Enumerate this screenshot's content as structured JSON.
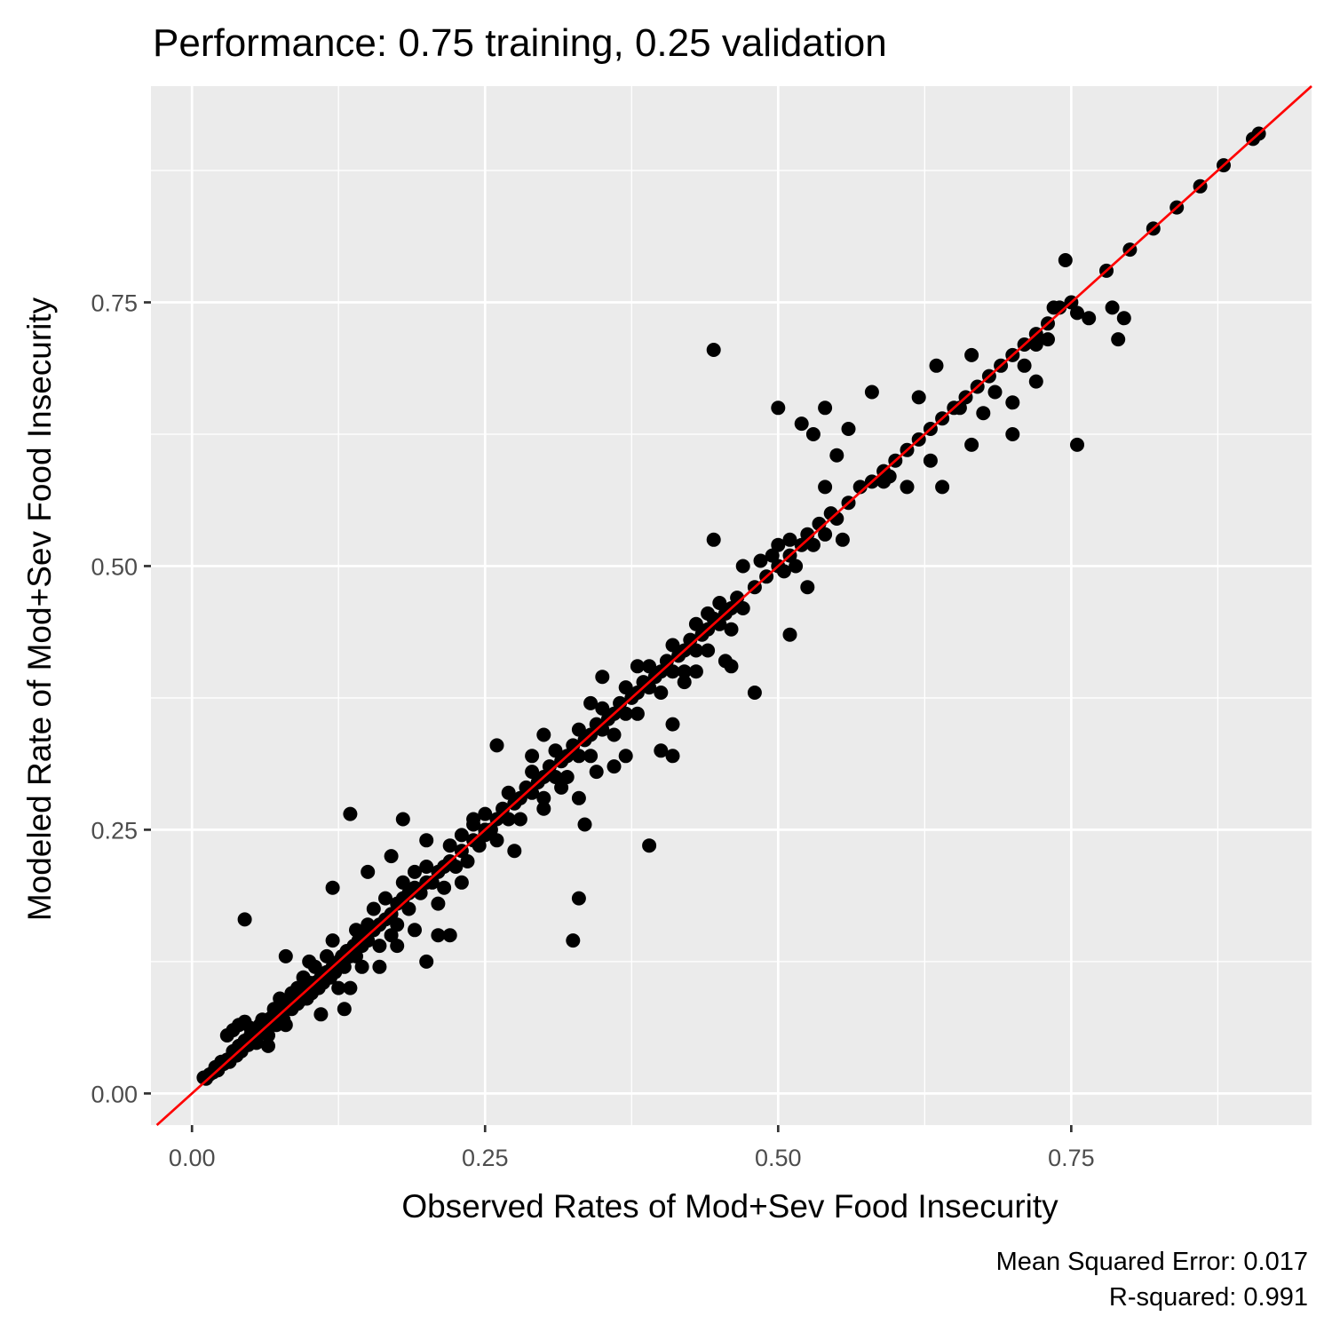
{
  "chart_data": {
    "type": "scatter",
    "title": "Performance: 0.75 training, 0.25 validation",
    "xlabel": "Observed Rates of Mod+Sev Food Insecurity",
    "ylabel": "Modeled Rate of Mod+Sev Food Insecurity",
    "xlim": [
      -0.035,
      0.955
    ],
    "ylim": [
      -0.03,
      0.955
    ],
    "x_ticks": [
      0.0,
      0.25,
      0.5,
      0.75
    ],
    "x_tick_labels": [
      "0.00",
      "0.25",
      "0.50",
      "0.75"
    ],
    "y_ticks": [
      0.0,
      0.25,
      0.5,
      0.75
    ],
    "y_tick_labels": [
      "0.00",
      "0.25",
      "0.50",
      "0.75"
    ],
    "grid": true,
    "legend": "none",
    "caption": [
      "Mean Squared Error: 0.017",
      "R-squared: 0.991"
    ],
    "reference_line": {
      "slope": 1,
      "intercept": 0,
      "color": "#ff0000"
    },
    "point_color": "#000000",
    "panel_background": "#ebebeb",
    "points": [
      [
        0.01,
        0.015
      ],
      [
        0.012,
        0.014
      ],
      [
        0.015,
        0.018
      ],
      [
        0.018,
        0.02
      ],
      [
        0.02,
        0.025
      ],
      [
        0.022,
        0.022
      ],
      [
        0.025,
        0.03
      ],
      [
        0.027,
        0.028
      ],
      [
        0.03,
        0.032
      ],
      [
        0.03,
        0.055
      ],
      [
        0.032,
        0.03
      ],
      [
        0.035,
        0.04
      ],
      [
        0.035,
        0.06
      ],
      [
        0.038,
        0.036
      ],
      [
        0.04,
        0.045
      ],
      [
        0.04,
        0.065
      ],
      [
        0.042,
        0.04
      ],
      [
        0.045,
        0.05
      ],
      [
        0.045,
        0.068
      ],
      [
        0.048,
        0.046
      ],
      [
        0.05,
        0.055
      ],
      [
        0.05,
        0.062
      ],
      [
        0.052,
        0.05
      ],
      [
        0.055,
        0.06
      ],
      [
        0.055,
        0.048
      ],
      [
        0.058,
        0.065
      ],
      [
        0.06,
        0.058
      ],
      [
        0.06,
        0.07
      ],
      [
        0.062,
        0.062
      ],
      [
        0.065,
        0.07
      ],
      [
        0.065,
        0.055
      ],
      [
        0.068,
        0.072
      ],
      [
        0.07,
        0.068
      ],
      [
        0.07,
        0.08
      ],
      [
        0.072,
        0.065
      ],
      [
        0.075,
        0.075
      ],
      [
        0.075,
        0.09
      ],
      [
        0.078,
        0.07
      ],
      [
        0.08,
        0.082
      ],
      [
        0.08,
        0.065
      ],
      [
        0.082,
        0.085
      ],
      [
        0.085,
        0.08
      ],
      [
        0.085,
        0.095
      ],
      [
        0.088,
        0.09
      ],
      [
        0.09,
        0.085
      ],
      [
        0.09,
        0.1
      ],
      [
        0.092,
        0.088
      ],
      [
        0.095,
        0.095
      ],
      [
        0.095,
        0.11
      ],
      [
        0.098,
        0.09
      ],
      [
        0.1,
        0.1
      ],
      [
        0.1,
        0.105
      ],
      [
        0.102,
        0.095
      ],
      [
        0.105,
        0.105
      ],
      [
        0.105,
        0.12
      ],
      [
        0.108,
        0.1
      ],
      [
        0.11,
        0.11
      ],
      [
        0.112,
        0.105
      ],
      [
        0.115,
        0.115
      ],
      [
        0.115,
        0.13
      ],
      [
        0.118,
        0.11
      ],
      [
        0.12,
        0.12
      ],
      [
        0.12,
        0.145
      ],
      [
        0.122,
        0.115
      ],
      [
        0.125,
        0.125
      ],
      [
        0.125,
        0.1
      ],
      [
        0.128,
        0.13
      ],
      [
        0.13,
        0.12
      ],
      [
        0.132,
        0.135
      ],
      [
        0.135,
        0.13
      ],
      [
        0.135,
        0.1
      ],
      [
        0.138,
        0.14
      ],
      [
        0.14,
        0.13
      ],
      [
        0.14,
        0.155
      ],
      [
        0.142,
        0.145
      ],
      [
        0.145,
        0.14
      ],
      [
        0.145,
        0.12
      ],
      [
        0.148,
        0.15
      ],
      [
        0.15,
        0.145
      ],
      [
        0.15,
        0.16
      ],
      [
        0.155,
        0.155
      ],
      [
        0.155,
        0.175
      ],
      [
        0.16,
        0.16
      ],
      [
        0.16,
        0.14
      ],
      [
        0.165,
        0.165
      ],
      [
        0.165,
        0.185
      ],
      [
        0.17,
        0.17
      ],
      [
        0.17,
        0.15
      ],
      [
        0.175,
        0.18
      ],
      [
        0.175,
        0.16
      ],
      [
        0.18,
        0.185
      ],
      [
        0.18,
        0.2
      ],
      [
        0.185,
        0.175
      ],
      [
        0.185,
        0.19
      ],
      [
        0.19,
        0.195
      ],
      [
        0.19,
        0.21
      ],
      [
        0.195,
        0.19
      ],
      [
        0.2,
        0.2
      ],
      [
        0.2,
        0.215
      ],
      [
        0.205,
        0.2
      ],
      [
        0.21,
        0.21
      ],
      [
        0.21,
        0.18
      ],
      [
        0.215,
        0.215
      ],
      [
        0.215,
        0.195
      ],
      [
        0.22,
        0.22
      ],
      [
        0.22,
        0.235
      ],
      [
        0.225,
        0.215
      ],
      [
        0.23,
        0.23
      ],
      [
        0.23,
        0.245
      ],
      [
        0.235,
        0.22
      ],
      [
        0.24,
        0.24
      ],
      [
        0.24,
        0.26
      ],
      [
        0.245,
        0.235
      ],
      [
        0.25,
        0.25
      ],
      [
        0.25,
        0.265
      ],
      [
        0.255,
        0.25
      ],
      [
        0.26,
        0.26
      ],
      [
        0.26,
        0.24
      ],
      [
        0.265,
        0.27
      ],
      [
        0.27,
        0.26
      ],
      [
        0.27,
        0.285
      ],
      [
        0.275,
        0.275
      ],
      [
        0.28,
        0.28
      ],
      [
        0.28,
        0.26
      ],
      [
        0.285,
        0.29
      ],
      [
        0.29,
        0.285
      ],
      [
        0.29,
        0.305
      ],
      [
        0.295,
        0.295
      ],
      [
        0.3,
        0.3
      ],
      [
        0.3,
        0.28
      ],
      [
        0.305,
        0.31
      ],
      [
        0.31,
        0.3
      ],
      [
        0.31,
        0.325
      ],
      [
        0.315,
        0.315
      ],
      [
        0.32,
        0.32
      ],
      [
        0.32,
        0.3
      ],
      [
        0.325,
        0.33
      ],
      [
        0.33,
        0.32
      ],
      [
        0.33,
        0.345
      ],
      [
        0.335,
        0.335
      ],
      [
        0.34,
        0.34
      ],
      [
        0.34,
        0.32
      ],
      [
        0.345,
        0.35
      ],
      [
        0.35,
        0.345
      ],
      [
        0.35,
        0.365
      ],
      [
        0.355,
        0.355
      ],
      [
        0.36,
        0.36
      ],
      [
        0.36,
        0.34
      ],
      [
        0.365,
        0.37
      ],
      [
        0.37,
        0.36
      ],
      [
        0.37,
        0.385
      ],
      [
        0.375,
        0.375
      ],
      [
        0.38,
        0.38
      ],
      [
        0.38,
        0.36
      ],
      [
        0.385,
        0.39
      ],
      [
        0.39,
        0.385
      ],
      [
        0.39,
        0.405
      ],
      [
        0.395,
        0.395
      ],
      [
        0.4,
        0.4
      ],
      [
        0.4,
        0.38
      ],
      [
        0.405,
        0.41
      ],
      [
        0.41,
        0.4
      ],
      [
        0.41,
        0.425
      ],
      [
        0.415,
        0.415
      ],
      [
        0.42,
        0.42
      ],
      [
        0.42,
        0.4
      ],
      [
        0.425,
        0.43
      ],
      [
        0.43,
        0.42
      ],
      [
        0.43,
        0.445
      ],
      [
        0.435,
        0.435
      ],
      [
        0.44,
        0.44
      ],
      [
        0.44,
        0.42
      ],
      [
        0.445,
        0.45
      ],
      [
        0.45,
        0.445
      ],
      [
        0.45,
        0.465
      ],
      [
        0.455,
        0.455
      ],
      [
        0.46,
        0.46
      ],
      [
        0.46,
        0.44
      ],
      [
        0.465,
        0.47
      ],
      [
        0.47,
        0.46
      ],
      [
        0.48,
        0.48
      ],
      [
        0.49,
        0.49
      ],
      [
        0.5,
        0.5
      ],
      [
        0.5,
        0.52
      ],
      [
        0.505,
        0.495
      ],
      [
        0.51,
        0.51
      ],
      [
        0.515,
        0.5
      ],
      [
        0.52,
        0.52
      ],
      [
        0.525,
        0.53
      ],
      [
        0.53,
        0.52
      ],
      [
        0.535,
        0.54
      ],
      [
        0.54,
        0.53
      ],
      [
        0.545,
        0.55
      ],
      [
        0.55,
        0.545
      ],
      [
        0.56,
        0.56
      ],
      [
        0.57,
        0.575
      ],
      [
        0.58,
        0.58
      ],
      [
        0.59,
        0.59
      ],
      [
        0.6,
        0.6
      ],
      [
        0.61,
        0.61
      ],
      [
        0.62,
        0.62
      ],
      [
        0.63,
        0.63
      ],
      [
        0.64,
        0.64
      ],
      [
        0.65,
        0.65
      ],
      [
        0.66,
        0.66
      ],
      [
        0.67,
        0.67
      ],
      [
        0.68,
        0.68
      ],
      [
        0.69,
        0.69
      ],
      [
        0.7,
        0.7
      ],
      [
        0.71,
        0.71
      ],
      [
        0.72,
        0.72
      ],
      [
        0.73,
        0.73
      ],
      [
        0.74,
        0.745
      ],
      [
        0.75,
        0.75
      ],
      [
        0.78,
        0.78
      ],
      [
        0.8,
        0.8
      ],
      [
        0.82,
        0.82
      ],
      [
        0.84,
        0.84
      ],
      [
        0.86,
        0.86
      ],
      [
        0.88,
        0.88
      ],
      [
        0.905,
        0.905
      ],
      [
        0.91,
        0.91
      ],
      [
        0.045,
        0.165
      ],
      [
        0.135,
        0.265
      ],
      [
        0.2,
        0.125
      ],
      [
        0.21,
        0.15
      ],
      [
        0.22,
        0.15
      ],
      [
        0.325,
        0.145
      ],
      [
        0.33,
        0.185
      ],
      [
        0.335,
        0.255
      ],
      [
        0.39,
        0.235
      ],
      [
        0.37,
        0.32
      ],
      [
        0.4,
        0.325
      ],
      [
        0.41,
        0.32
      ],
      [
        0.445,
        0.705
      ],
      [
        0.445,
        0.525
      ],
      [
        0.48,
        0.38
      ],
      [
        0.51,
        0.435
      ],
      [
        0.5,
        0.65
      ],
      [
        0.525,
        0.48
      ],
      [
        0.755,
        0.615
      ],
      [
        0.79,
        0.715
      ],
      [
        0.795,
        0.735
      ],
      [
        0.765,
        0.735
      ],
      [
        0.72,
        0.675
      ],
      [
        0.7,
        0.625
      ],
      [
        0.665,
        0.615
      ],
      [
        0.64,
        0.575
      ],
      [
        0.63,
        0.6
      ],
      [
        0.62,
        0.66
      ],
      [
        0.595,
        0.585
      ],
      [
        0.58,
        0.665
      ],
      [
        0.56,
        0.63
      ],
      [
        0.55,
        0.605
      ],
      [
        0.54,
        0.65
      ],
      [
        0.52,
        0.635
      ],
      [
        0.53,
        0.625
      ],
      [
        0.47,
        0.5
      ],
      [
        0.46,
        0.405
      ],
      [
        0.43,
        0.4
      ],
      [
        0.41,
        0.35
      ],
      [
        0.36,
        0.31
      ],
      [
        0.35,
        0.395
      ],
      [
        0.34,
        0.37
      ],
      [
        0.3,
        0.34
      ],
      [
        0.29,
        0.32
      ],
      [
        0.26,
        0.33
      ],
      [
        0.25,
        0.245
      ],
      [
        0.23,
        0.2
      ],
      [
        0.2,
        0.24
      ],
      [
        0.18,
        0.26
      ],
      [
        0.17,
        0.225
      ],
      [
        0.15,
        0.21
      ],
      [
        0.12,
        0.195
      ],
      [
        0.1,
        0.125
      ],
      [
        0.08,
        0.13
      ],
      [
        0.065,
        0.045
      ],
      [
        0.11,
        0.075
      ],
      [
        0.13,
        0.08
      ],
      [
        0.16,
        0.12
      ],
      [
        0.175,
        0.14
      ],
      [
        0.19,
        0.155
      ],
      [
        0.24,
        0.255
      ],
      [
        0.275,
        0.23
      ],
      [
        0.3,
        0.27
      ],
      [
        0.315,
        0.29
      ],
      [
        0.33,
        0.28
      ],
      [
        0.345,
        0.305
      ],
      [
        0.38,
        0.405
      ],
      [
        0.42,
        0.39
      ],
      [
        0.44,
        0.455
      ],
      [
        0.455,
        0.41
      ],
      [
        0.485,
        0.505
      ],
      [
        0.495,
        0.51
      ],
      [
        0.51,
        0.525
      ],
      [
        0.54,
        0.575
      ],
      [
        0.555,
        0.525
      ],
      [
        0.59,
        0.58
      ],
      [
        0.61,
        0.575
      ],
      [
        0.635,
        0.69
      ],
      [
        0.655,
        0.65
      ],
      [
        0.665,
        0.7
      ],
      [
        0.675,
        0.645
      ],
      [
        0.685,
        0.665
      ],
      [
        0.7,
        0.655
      ],
      [
        0.71,
        0.69
      ],
      [
        0.72,
        0.71
      ],
      [
        0.73,
        0.715
      ],
      [
        0.735,
        0.745
      ],
      [
        0.745,
        0.79
      ],
      [
        0.755,
        0.74
      ],
      [
        0.785,
        0.745
      ]
    ]
  }
}
